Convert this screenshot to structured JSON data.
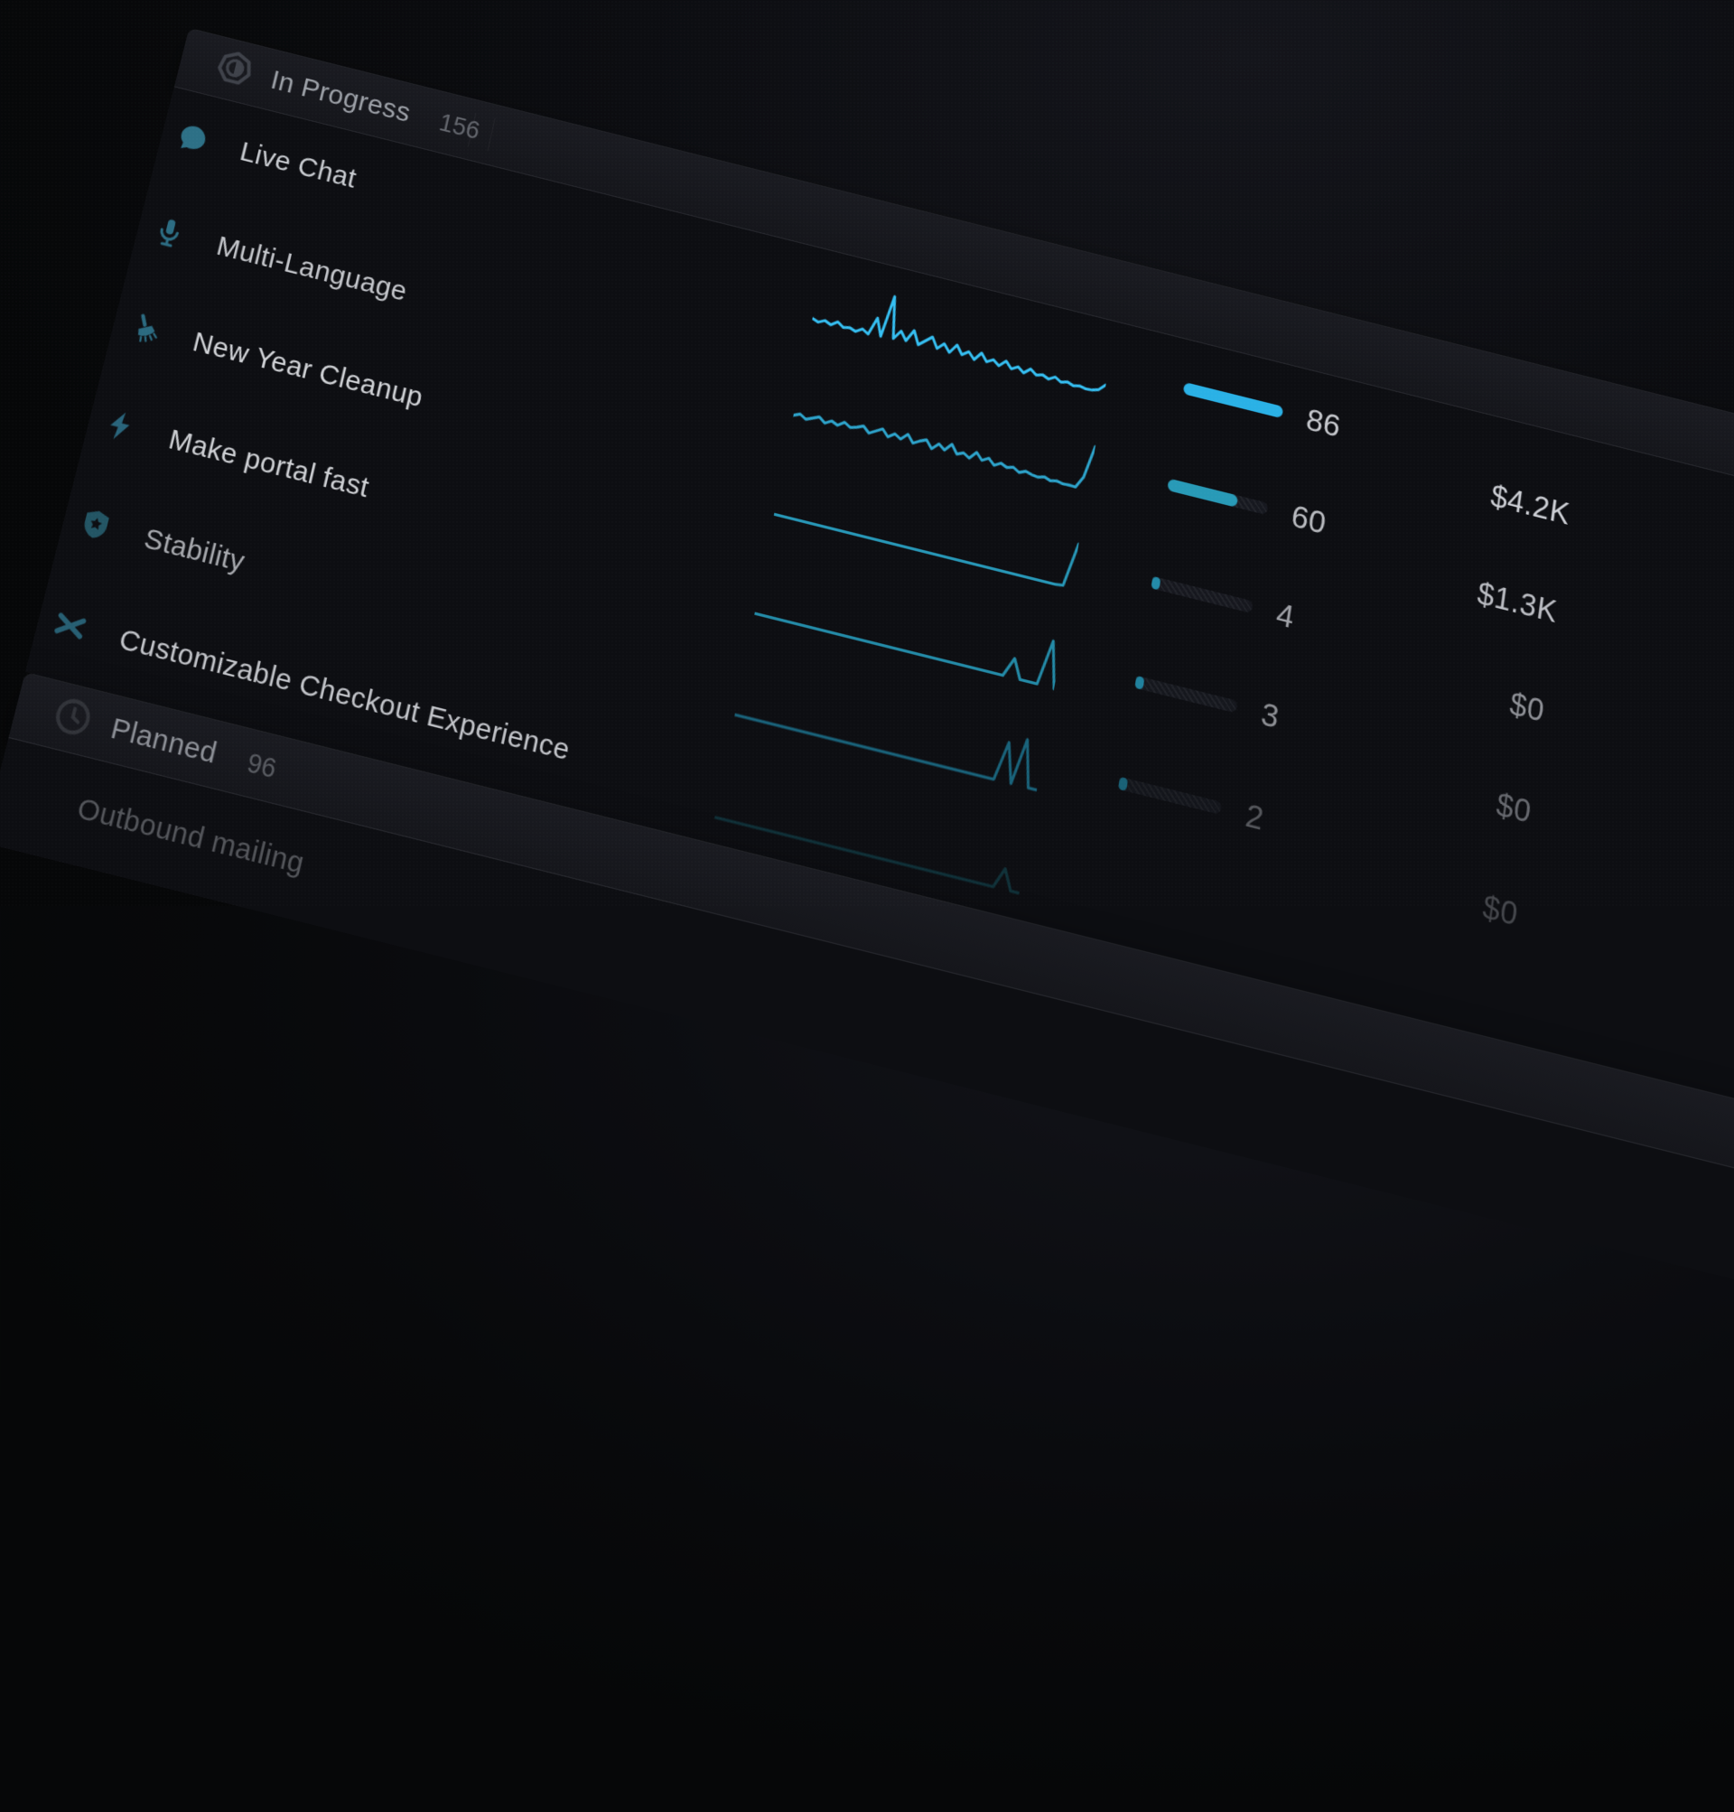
{
  "board": {
    "sections": [
      {
        "label": "In Progress",
        "count": "156",
        "status_icon": "in-progress-half-circle-icon",
        "items": [
          {
            "title": "Live Chat",
            "icon": "chat-bubble-icon",
            "votes": "86",
            "votes_pct": 100,
            "revenue": "$4.2K"
          },
          {
            "title": "Multi-Language",
            "icon": "microphone-icon",
            "votes": "60",
            "votes_pct": 70,
            "revenue": "$1.3K"
          },
          {
            "title": "New Year Cleanup",
            "icon": "broom-icon",
            "votes": "4",
            "votes_pct": 7,
            "revenue": "$0"
          },
          {
            "title": "Make portal fast",
            "icon": "lightning-icon",
            "votes": "3",
            "votes_pct": 5,
            "revenue": "$0"
          },
          {
            "title": "Stability",
            "icon": "shield-star-icon",
            "votes": "2",
            "votes_pct": 4,
            "revenue": "$0"
          },
          {
            "title": "Customizable Checkout Experience",
            "icon": "crossed-tools-icon"
          }
        ]
      },
      {
        "label": "Planned",
        "count": "96",
        "status_icon": "clock-icon",
        "items": [
          {
            "title": "Outbound mailing"
          }
        ]
      }
    ]
  },
  "colors": {
    "accent_bright_cyan": "#2ab1e6",
    "accent_teal": "#2a9fc0",
    "icon_teal": "#2d7086",
    "header_band": "#17181d",
    "panel_body": "#0d0e12",
    "page_background": "#0a0b0e"
  },
  "chart_data": {
    "type": "line",
    "description": "Per-post vote activity sparklines (relative heights 0-1, no axes shown)",
    "legend_position": "none",
    "grid": false,
    "sparklines": [
      {
        "name": "Live Chat",
        "values": [
          0.1,
          0.05,
          0.12,
          0.06,
          0.16,
          0.07,
          0.1,
          0.05,
          0.14,
          0.06,
          0.45,
          0.08,
          1.0,
          0.1,
          0.3,
          0.12,
          0.38,
          0.1,
          0.22,
          0.34,
          0.12,
          0.26,
          0.1,
          0.3,
          0.12,
          0.22,
          0.08,
          0.26,
          0.1,
          0.18,
          0.08,
          0.22,
          0.08,
          0.16,
          0.06,
          0.18,
          0.08,
          0.12,
          0.06,
          0.14,
          0.06,
          0.1,
          0.05,
          0.08,
          0.05,
          0.06,
          0.1,
          0.24
        ]
      },
      {
        "name": "Multi-Language",
        "values": [
          0.08,
          0.14,
          0.06,
          0.12,
          0.18,
          0.08,
          0.16,
          0.1,
          0.2,
          0.12,
          0.16,
          0.22,
          0.1,
          0.18,
          0.26,
          0.12,
          0.22,
          0.14,
          0.28,
          0.12,
          0.2,
          0.26,
          0.1,
          0.24,
          0.14,
          0.3,
          0.12,
          0.18,
          0.1,
          0.26,
          0.12,
          0.2,
          0.08,
          0.16,
          0.1,
          0.14,
          0.06,
          0.12,
          0.08,
          0.06,
          0.1,
          0.05,
          0.08,
          0.05,
          0.06,
          0.05,
          0.3,
          1.0
        ]
      },
      {
        "name": "New Year Cleanup",
        "values": [
          0.05,
          0.05,
          0.05,
          0.05,
          0.05,
          0.05,
          0.05,
          0.05,
          0.05,
          0.05,
          0.05,
          0.05,
          0.05,
          0.05,
          0.05,
          0.05,
          0.05,
          0.05,
          0.05,
          0.05,
          0.05,
          0.05,
          0.05,
          0.05,
          0.05,
          0.05,
          0.05,
          0.05,
          0.05,
          0.05,
          0.05,
          0.05,
          0.05,
          0.05,
          0.05,
          0.07,
          1.0
        ]
      },
      {
        "name": "Make portal fast",
        "values": [
          0.05,
          0.05,
          0.05,
          0.05,
          0.05,
          0.05,
          0.05,
          0.05,
          0.05,
          0.05,
          0.05,
          0.05,
          0.05,
          0.05,
          0.05,
          0.05,
          0.05,
          0.05,
          0.05,
          0.05,
          0.05,
          0.05,
          0.05,
          0.05,
          0.05,
          0.05,
          0.05,
          0.05,
          0.05,
          0.05,
          0.45,
          0.05,
          0.05,
          0.05,
          1.0,
          0.03
        ]
      },
      {
        "name": "Stability",
        "values": [
          0.04,
          0.04,
          0.04,
          0.04,
          0.04,
          0.04,
          0.04,
          0.04,
          0.04,
          0.04,
          0.04,
          0.04,
          0.04,
          0.04,
          0.04,
          0.04,
          0.04,
          0.04,
          0.04,
          0.04,
          0.04,
          0.04,
          0.04,
          0.04,
          0.04,
          0.04,
          0.04,
          0.04,
          0.04,
          0.04,
          0.04,
          0.85,
          0.04,
          1.0,
          0.04,
          0.04
        ]
      },
      {
        "name": "Customizable Checkout Experience",
        "values": [
          0.04,
          0.04,
          0.04,
          0.04,
          0.04,
          0.04,
          0.04,
          0.04,
          0.04,
          0.04,
          0.04,
          0.04,
          0.04,
          0.04,
          0.04,
          0.04,
          0.04,
          0.04,
          0.04,
          0.04,
          0.04,
          0.04,
          0.04,
          0.04,
          0.04,
          0.04,
          0.04,
          0.04,
          0.04,
          0.04,
          0.04,
          0.04,
          0.04,
          0.45,
          0.04,
          0.04
        ]
      }
    ]
  }
}
